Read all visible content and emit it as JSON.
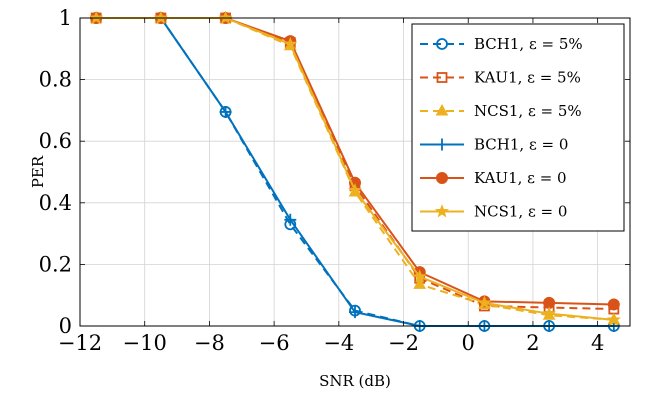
{
  "chart_data": {
    "type": "line",
    "xlabel": "SNR (dB)",
    "ylabel": "PER",
    "xlim": [
      -12,
      5
    ],
    "ylim": [
      0,
      1
    ],
    "xticks": [
      -12,
      -10,
      -8,
      -6,
      -4,
      -2,
      0,
      2,
      4
    ],
    "yticks": [
      0,
      0.2,
      0.4,
      0.6,
      0.8,
      1
    ],
    "xtick_labels": [
      "−12",
      "−10",
      "−8",
      "−6",
      "−4",
      "−2",
      "0",
      "2",
      "4"
    ],
    "ytick_labels": [
      "0",
      "0.2",
      "0.4",
      "0.6",
      "0.8",
      "1"
    ],
    "grid": true,
    "legend_position": "top-right",
    "x": [
      -11.5,
      -9.5,
      -7.5,
      -5.5,
      -3.5,
      -1.5,
      0.5,
      2.5,
      4.5
    ],
    "series": [
      {
        "name": "BCH1, ε = 5%",
        "color": "#0072BD",
        "dash": "dashed",
        "marker": "circle-open",
        "values": [
          1,
          1,
          0.695,
          0.33,
          0.05,
          0,
          0,
          0,
          0
        ]
      },
      {
        "name": "KAU1, ε = 5%",
        "color": "#D95319",
        "dash": "dashed",
        "marker": "square-open",
        "values": [
          1,
          1,
          1,
          0.92,
          0.455,
          0.155,
          0.065,
          0.06,
          0.055
        ]
      },
      {
        "name": "NCS1, ε = 5%",
        "color": "#EDB120",
        "dash": "dashed",
        "marker": "triangle",
        "values": [
          1,
          1,
          1,
          0.91,
          0.435,
          0.135,
          0.07,
          0.035,
          0.02
        ]
      },
      {
        "name": "BCH1, ε = 0",
        "color": "#0072BD",
        "dash": "solid",
        "marker": "plus",
        "values": [
          1,
          1,
          0.695,
          0.345,
          0.045,
          0,
          0,
          0,
          0
        ]
      },
      {
        "name": "KAU1, ε = 0",
        "color": "#D95319",
        "dash": "solid",
        "marker": "circle",
        "values": [
          1,
          1,
          1,
          0.925,
          0.465,
          0.175,
          0.08,
          0.075,
          0.07
        ]
      },
      {
        "name": "NCS1, ε = 0",
        "color": "#EDB120",
        "dash": "solid",
        "marker": "star",
        "values": [
          1,
          1,
          1,
          0.915,
          0.44,
          0.16,
          0.075,
          0.04,
          0.02
        ]
      }
    ]
  }
}
